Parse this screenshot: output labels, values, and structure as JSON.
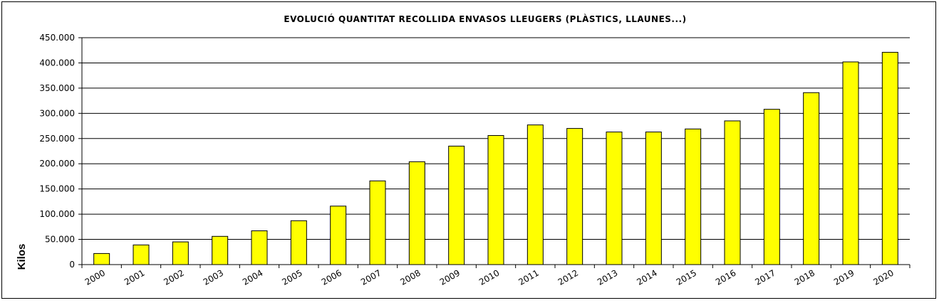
{
  "chart_data": {
    "type": "bar",
    "title": "EVOLUCIÓ  QUANTITAT  RECOLLIDA  ENVASOS  LLEUGERS  (PLÀSTICS,  LLAUNES...)",
    "xlabel": "",
    "ylabel": "Kilos",
    "ylim": [
      0,
      450000
    ],
    "yticks": [
      0,
      50000,
      100000,
      150000,
      200000,
      250000,
      300000,
      350000,
      400000,
      450000
    ],
    "ytick_labels": [
      "0",
      "50.000",
      "100.000",
      "150.000",
      "200.000",
      "250.000",
      "300.000",
      "350.000",
      "400.000",
      "450.000"
    ],
    "grid": true,
    "bar_color": "#FFFF00",
    "categories": [
      "2000",
      "2001",
      "2002",
      "2003",
      "2004",
      "2005",
      "2006",
      "2007",
      "2008",
      "2009",
      "2010",
      "2011",
      "2012",
      "2013",
      "2014",
      "2015",
      "2016",
      "2017",
      "2018",
      "2019",
      "2020"
    ],
    "values": [
      22000,
      39000,
      45000,
      56000,
      67000,
      87000,
      116000,
      166000,
      204000,
      235000,
      256000,
      277000,
      270000,
      263000,
      263000,
      269000,
      285000,
      308000,
      341000,
      402000,
      421000
    ]
  }
}
